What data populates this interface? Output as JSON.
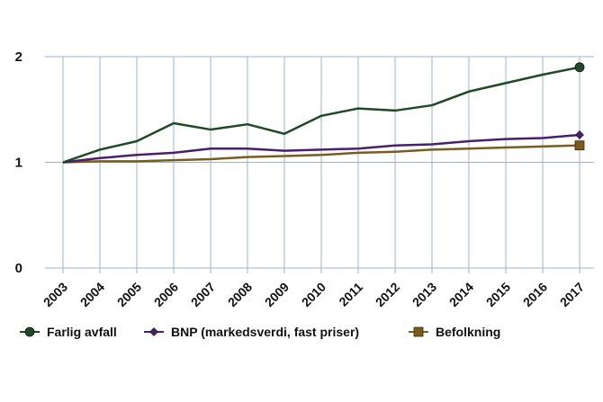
{
  "chart_data": {
    "type": "line",
    "title": "",
    "xlabel": "",
    "ylabel": "",
    "x": [
      "2003",
      "2004",
      "2005",
      "2006",
      "2007",
      "2008",
      "2009",
      "2010",
      "2011",
      "2012",
      "2013",
      "2014",
      "2015",
      "2016",
      "2017"
    ],
    "ylim": [
      0,
      2
    ],
    "yticks": [
      "0",
      "1",
      "2"
    ],
    "grid": true,
    "legend_position": "bottom",
    "series": [
      {
        "name": "Farlig avfall",
        "color": "#1e4a24",
        "marker": "circle",
        "values": [
          1.0,
          1.12,
          1.2,
          1.37,
          1.31,
          1.36,
          1.27,
          1.44,
          1.51,
          1.49,
          1.54,
          1.67,
          1.75,
          1.83,
          1.9
        ]
      },
      {
        "name": "BNP (markedsverdi, fast  priser)",
        "color": "#4b1e6e",
        "marker": "diamond",
        "values": [
          1.0,
          1.04,
          1.07,
          1.09,
          1.13,
          1.13,
          1.11,
          1.12,
          1.13,
          1.16,
          1.17,
          1.2,
          1.22,
          1.23,
          1.26
        ]
      },
      {
        "name": "Befolkning",
        "color": "#7a5c1e",
        "marker": "square",
        "values": [
          1.0,
          1.01,
          1.01,
          1.02,
          1.03,
          1.05,
          1.06,
          1.07,
          1.09,
          1.1,
          1.12,
          1.13,
          1.14,
          1.15,
          1.16
        ]
      }
    ]
  }
}
